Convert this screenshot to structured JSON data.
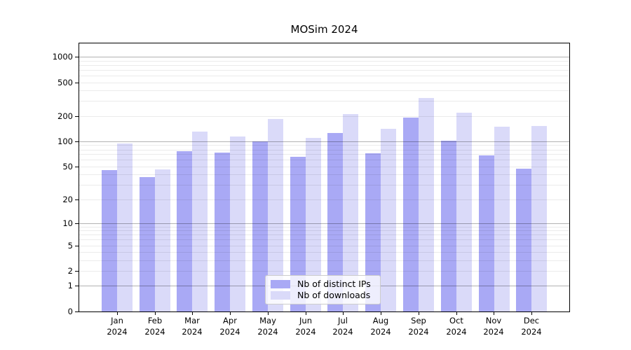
{
  "title": "MOSim 2024",
  "chart_data": {
    "type": "bar",
    "title": "MOSim 2024",
    "xlabel": "",
    "ylabel": "",
    "yscale": "log10(1+v) (symlog-like, 0 at baseline)",
    "ylim": [
      0,
      1430
    ],
    "y_ticks": [
      0,
      1,
      2,
      5,
      10,
      20,
      50,
      100,
      200,
      500,
      1000
    ],
    "grid": "on (major dark lines at 1,10,100,1000; light minor lines at 2-9 per decade, drawn over bars)",
    "legend_position": "lower center",
    "categories": [
      "Jan",
      "Feb",
      "Mar",
      "Apr",
      "May",
      "Jun",
      "Jul",
      "Aug",
      "Sep",
      "Oct",
      "Nov",
      "Dec"
    ],
    "category_year": "2024",
    "series": [
      {
        "name": "Nb of distinct IPs",
        "color": "#a9a9f5",
        "values": [
          45,
          37,
          76,
          74,
          100,
          65,
          125,
          72,
          192,
          101,
          68,
          47
        ]
      },
      {
        "name": "Nb of downloads",
        "color": "#dadaf9",
        "values": [
          95,
          46,
          130,
          114,
          184,
          110,
          210,
          142,
          325,
          218,
          148,
          151
        ]
      }
    ]
  },
  "colors": {
    "background": "#ffffff",
    "axis": "#000000",
    "grid_major": "#b8b8b8",
    "grid_minor": "#e8e8e8",
    "legend_border": "#cccccc"
  }
}
